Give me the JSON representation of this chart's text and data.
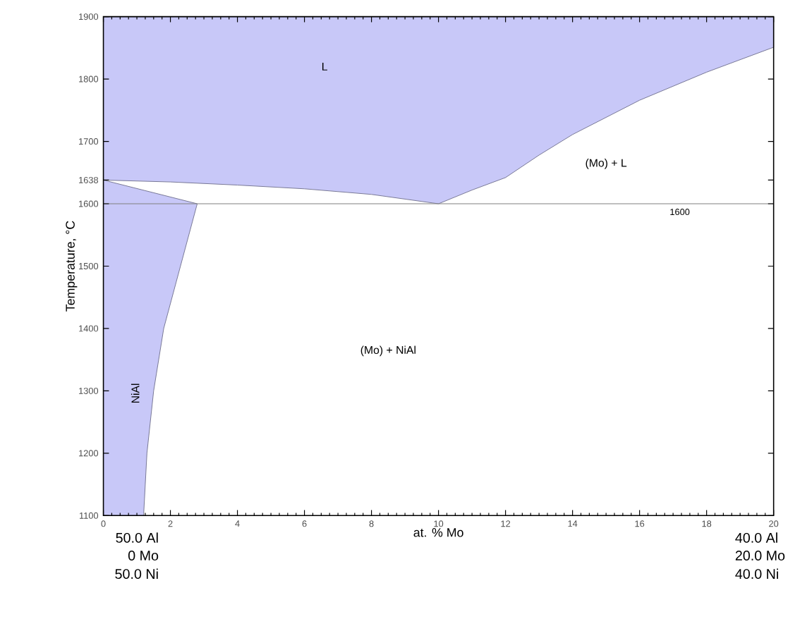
{
  "chart_data": {
    "type": "area",
    "xlabel": "at. % Mo",
    "ylabel": "Temperature, °C",
    "xlim": [
      0,
      20
    ],
    "ylim": [
      1100,
      1900
    ],
    "xticks": [
      0,
      2,
      4,
      6,
      8,
      10,
      12,
      14,
      16,
      18,
      20
    ],
    "yticks": [
      1100,
      1200,
      1300,
      1400,
      1500,
      1600,
      1638,
      1700,
      1800,
      1900
    ],
    "series": [
      {
        "color": "#c8c8f8",
        "x": [
          0,
          2,
          4,
          6,
          8,
          10,
          11,
          12,
          13,
          14,
          16,
          18,
          20,
          20,
          0
        ],
        "values": [
          1638,
          1635,
          1630,
          1624,
          1615,
          1600,
          1622,
          1642,
          1678,
          1711,
          1766,
          1811,
          1851,
          1900,
          1900
        ]
      },
      {
        "color": "#c8c8f8",
        "x": [
          0,
          2.8,
          2.3,
          1.8,
          1.5,
          1.3,
          1.2,
          0
        ],
        "values": [
          1638,
          1600,
          1500,
          1400,
          1300,
          1200,
          1100,
          1100
        ]
      }
    ],
    "ref_lines": [
      {
        "axis": "y",
        "value": 1600,
        "label": "1600",
        "color": "#808080"
      }
    ],
    "annotations": [
      "L",
      "(Mo) + L",
      "(Mo) + NiAl",
      "NiAl",
      "50.0 Al",
      "0 Mo",
      "50.0 Ni",
      "40.0 Al",
      "20.0 Mo",
      "40.0 Ni"
    ]
  }
}
